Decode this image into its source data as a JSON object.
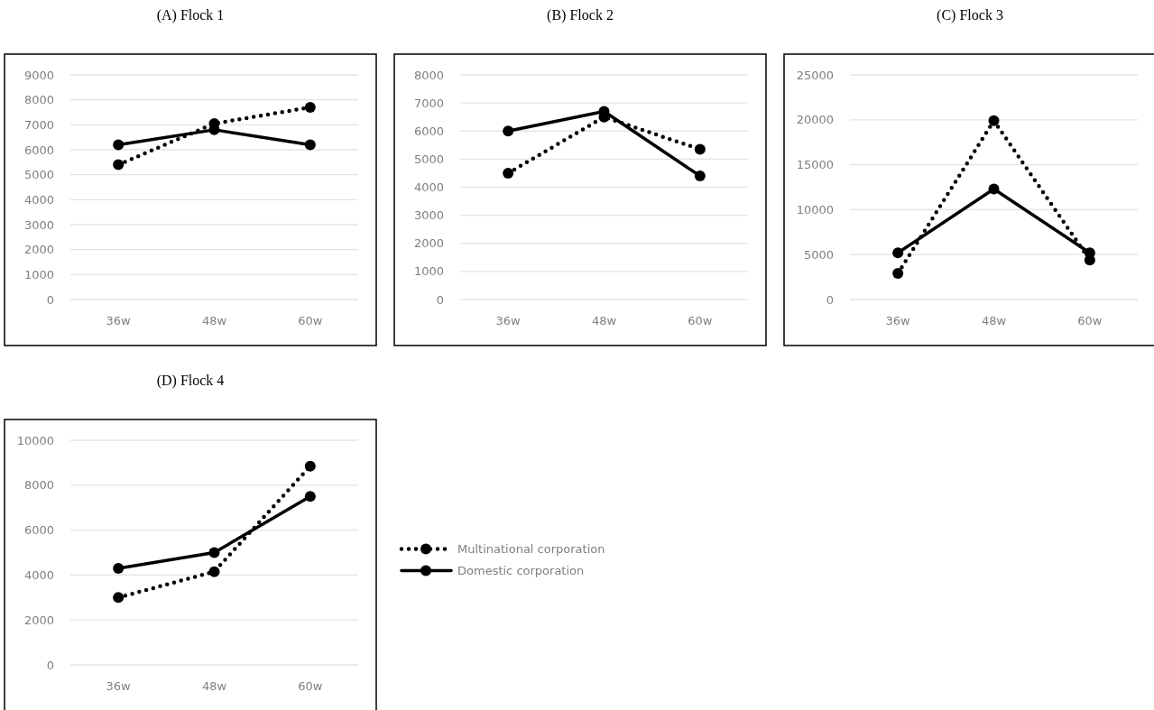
{
  "chart_data": [
    {
      "type": "line",
      "title": "(A) Flock 1",
      "categories": [
        "36w",
        "48w",
        "60w"
      ],
      "ylim": [
        0,
        9000
      ],
      "yticks": [
        0,
        1000,
        2000,
        3000,
        4000,
        5000,
        6000,
        7000,
        8000,
        9000
      ],
      "grid": "y",
      "marker": "circle",
      "series": [
        {
          "color": "#000000",
          "line_style": "dotted",
          "values": [
            5400,
            7050,
            7700
          ]
        },
        {
          "color": "#000000",
          "line_style": "solid",
          "values": [
            6200,
            6800,
            6200
          ]
        }
      ]
    },
    {
      "type": "line",
      "title": "(B) Flock 2",
      "categories": [
        "36w",
        "48w",
        "60w"
      ],
      "ylim": [
        0,
        8000
      ],
      "yticks": [
        0,
        1000,
        2000,
        3000,
        4000,
        5000,
        6000,
        7000,
        8000
      ],
      "grid": "y",
      "marker": "circle",
      "series": [
        {
          "color": "#000000",
          "line_style": "dotted",
          "values": [
            4500,
            6500,
            5350
          ]
        },
        {
          "color": "#000000",
          "line_style": "solid",
          "values": [
            6000,
            6700,
            4400
          ]
        }
      ]
    },
    {
      "type": "line",
      "title": "(C) Flock 3",
      "categories": [
        "36w",
        "48w",
        "60w"
      ],
      "ylim": [
        0,
        25000
      ],
      "yticks": [
        0,
        5000,
        10000,
        15000,
        20000,
        25000
      ],
      "grid": "y",
      "marker": "circle",
      "series": [
        {
          "color": "#000000",
          "line_style": "dotted",
          "values": [
            2900,
            19900,
            4400
          ]
        },
        {
          "color": "#000000",
          "line_style": "solid",
          "values": [
            5200,
            12300,
            5200
          ]
        }
      ]
    },
    {
      "type": "line",
      "title": "(D) Flock 4",
      "categories": [
        "36w",
        "48w",
        "60w"
      ],
      "ylim": [
        0,
        10000
      ],
      "yticks": [
        0,
        2000,
        4000,
        6000,
        8000,
        10000
      ],
      "grid": "y",
      "marker": "circle",
      "legend": "right",
      "series": [
        {
          "name": "Multinational corporation",
          "color": "#000000",
          "line_style": "dotted",
          "values": [
            3000,
            4150,
            8850
          ]
        },
        {
          "name": "Domestic corporation",
          "color": "#000000",
          "line_style": "solid",
          "values": [
            4300,
            5000,
            7500
          ]
        }
      ]
    }
  ]
}
